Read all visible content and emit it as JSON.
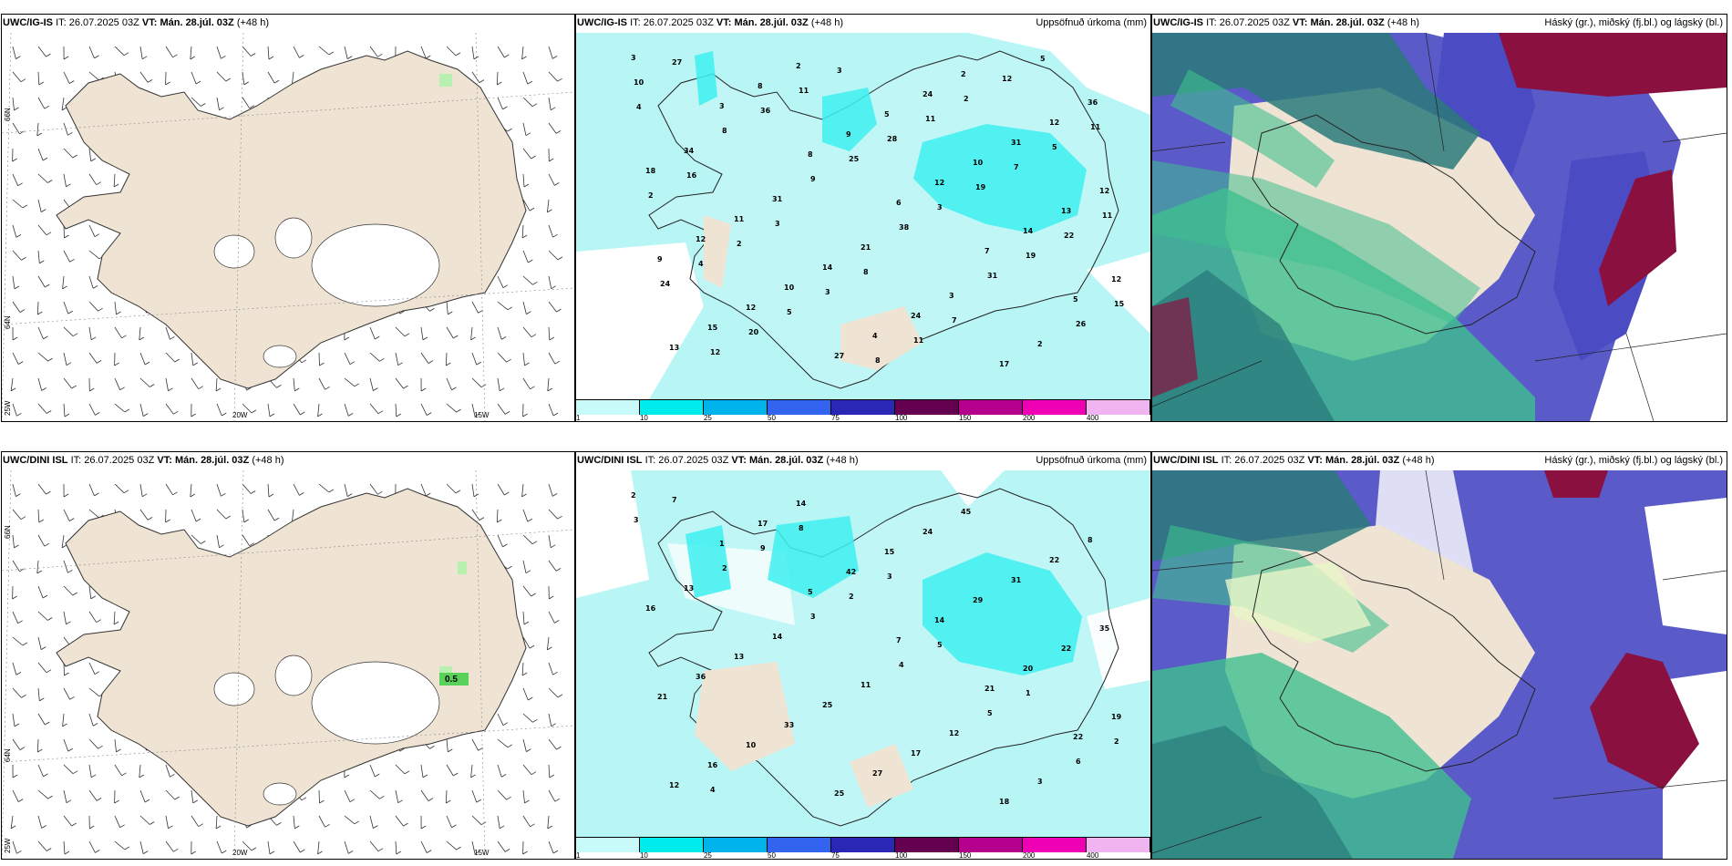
{
  "panels": [
    {
      "model": "UWC/IG-IS",
      "it_label": "IT:",
      "it_value": "26.07.2025 03Z",
      "vt_label": "VT:",
      "vt_value": "Mán. 28.júl. 03Z",
      "lead": "(+48 h)",
      "right_title": ""
    },
    {
      "model": "UWC/IG-IS",
      "it_label": "IT:",
      "it_value": "26.07.2025 03Z",
      "vt_label": "VT:",
      "vt_value": "Mán. 28.júl. 03Z",
      "lead": "(+48 h)",
      "right_title": "Uppsöfnuð úrkoma (mm)"
    },
    {
      "model": "UWC/IG-IS",
      "it_label": "IT:",
      "it_value": "26.07.2025 03Z",
      "vt_label": "VT:",
      "vt_value": "Mán. 28.júl. 03Z",
      "lead": "(+48 h)",
      "right_title": "Háský (gr.), miðský (fj.bl.) og lágský (bl.)"
    },
    {
      "model": "UWC/DINI ISL",
      "it_label": "IT:",
      "it_value": "26.07.2025 03Z",
      "vt_label": "VT:",
      "vt_value": "Mán. 28.júl. 03Z",
      "lead": "(+48 h)",
      "right_title": ""
    },
    {
      "model": "UWC/DINI ISL",
      "it_label": "IT:",
      "it_value": "26.07.2025 03Z",
      "vt_label": "VT:",
      "vt_value": "Mán. 28.júl. 03Z",
      "lead": "(+48 h)",
      "right_title": "Uppsöfnuð úrkoma (mm)"
    },
    {
      "model": "UWC/DINI ISL",
      "it_label": "IT:",
      "it_value": "26.07.2025 03Z",
      "vt_label": "VT:",
      "vt_value": "Mán. 28.júl. 03Z",
      "lead": "(+48 h)",
      "right_title": "Háský (gr.), miðský (fj.bl.) og lágský (bl.)"
    }
  ],
  "axis_labels": {
    "lon": [
      "20W",
      "15W"
    ],
    "lat": [
      "66N",
      "64N"
    ],
    "lon_left": "25W"
  },
  "wind_panel_label": "0.5",
  "precip_legend": {
    "levels": [
      "1",
      "10",
      "25",
      "50",
      "75",
      "100",
      "150",
      "200",
      "400"
    ],
    "colors": [
      "#c8fafa",
      "#00ebeb",
      "#00b4eb",
      "#3264f0",
      "#2828b4",
      "#640050",
      "#b4008c",
      "#f000b4",
      "#f0b4f0"
    ]
  },
  "colors": {
    "land": "#efe3d3",
    "sea": "#ffffff",
    "precip_light": "#b8f6f6",
    "precip_mid": "#3ef0f0",
    "cloud_high": "#3fbf8f",
    "cloud_mid": "#5050c8",
    "cloud_low": "#8a1040",
    "cloud_dark": "#2a7a7a"
  },
  "precip_numbers_top": [
    "3",
    "3",
    "8",
    "6",
    "7",
    "5",
    "13",
    "8",
    "9",
    "12",
    "14",
    "12",
    "15",
    "2",
    "5",
    "10",
    "13",
    "9",
    "12",
    "27",
    "24",
    "31",
    "12",
    "12",
    "10",
    "4",
    "2",
    "12",
    "18",
    "11",
    "14",
    "24",
    "17",
    "36",
    "34",
    "31",
    "21",
    "3",
    "2",
    "10",
    "8",
    "9",
    "38",
    "31",
    "26",
    "27",
    "36",
    "25",
    "3",
    "19",
    "15",
    "12",
    "11",
    "28",
    "19",
    "22",
    "24",
    "20",
    "3",
    "11",
    "7",
    "11",
    "4",
    "5",
    "8",
    "2",
    "5",
    "2",
    "2",
    "3",
    "11",
    "12",
    "11",
    "16",
    "3",
    "8",
    "7",
    "5",
    "4"
  ],
  "precip_numbers_bottom": [
    "2",
    "1",
    "5",
    "7",
    "21",
    "22",
    "12",
    "17",
    "42",
    "14",
    "20",
    "19",
    "16",
    "14",
    "15",
    "29",
    "22",
    "21",
    "10",
    "25",
    "24",
    "31",
    "35",
    "36",
    "33",
    "27",
    "45",
    "22",
    "16",
    "13",
    "25",
    "17",
    "18",
    "8",
    "13",
    "14",
    "11",
    "12",
    "3",
    "3",
    "2",
    "3",
    "4",
    "5",
    "6",
    "7",
    "9",
    "2",
    "5",
    "1",
    "2",
    "4",
    "8",
    "3"
  ]
}
